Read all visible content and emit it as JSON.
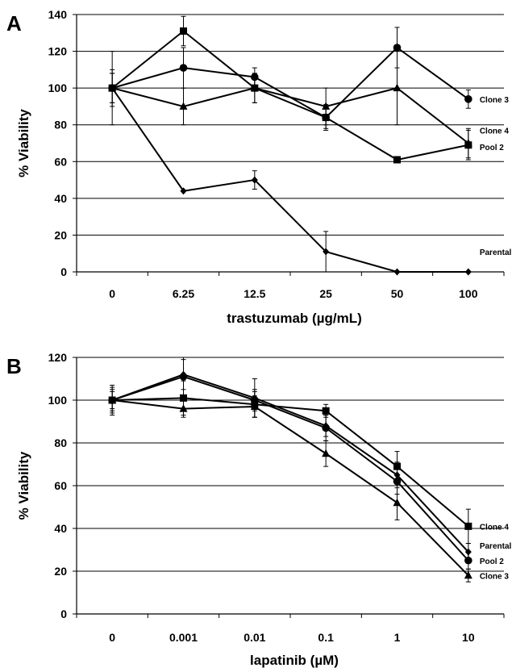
{
  "chart_data": [
    {
      "type": "line",
      "panel": "A",
      "xlabel": "trastuzumab (µg/mL)",
      "ylabel": "% Viability",
      "categories": [
        "0",
        "6.25",
        "12.5",
        "25",
        "50",
        "100"
      ],
      "ylim": [
        0,
        140
      ],
      "yticks": [
        0,
        20,
        40,
        60,
        80,
        100,
        120,
        140
      ],
      "grid": true,
      "series": [
        {
          "name": "Clone 3",
          "marker": "circle",
          "values": [
            100,
            111,
            106,
            84,
            122,
            94
          ],
          "errors": [
            10,
            11,
            5,
            6,
            11,
            5
          ]
        },
        {
          "name": "Clone 4",
          "marker": "triangle",
          "values": [
            100,
            90,
            100,
            90,
            100,
            70
          ],
          "errors": [
            20,
            10,
            8,
            10,
            20,
            8
          ]
        },
        {
          "name": "Pool 2",
          "marker": "square",
          "values": [
            100,
            131,
            100,
            84,
            61,
            69
          ],
          "errors": [
            8,
            8,
            8,
            7,
            0,
            8
          ]
        },
        {
          "name": "Parental",
          "marker": "diamond",
          "values": [
            100,
            44,
            50,
            11,
            0,
            0
          ],
          "errors": [
            8,
            0,
            5,
            11,
            0,
            0
          ]
        }
      ]
    },
    {
      "type": "line",
      "panel": "B",
      "xlabel": "lapatinib (µM)",
      "ylabel": "% Viability",
      "categories": [
        "0",
        "0.001",
        "0.01",
        "0.1",
        "1",
        "10"
      ],
      "ylim": [
        0,
        120
      ],
      "yticks": [
        0,
        20,
        40,
        60,
        80,
        100,
        120
      ],
      "grid": true,
      "series": [
        {
          "name": "Clone 4",
          "marker": "square",
          "values": [
            100,
            101,
            98,
            95,
            69,
            41
          ],
          "errors": [
            5,
            8,
            6,
            3,
            7,
            8
          ]
        },
        {
          "name": "Parental",
          "marker": "diamond",
          "values": [
            100,
            112,
            101,
            88,
            65,
            29
          ],
          "errors": [
            7,
            7,
            9,
            5,
            6,
            4
          ]
        },
        {
          "name": "Pool 2",
          "marker": "circle",
          "values": [
            100,
            111,
            100,
            87,
            62,
            25
          ],
          "errors": [
            6,
            9,
            5,
            6,
            6,
            4
          ]
        },
        {
          "name": "Clone 3",
          "marker": "triangle",
          "values": [
            100,
            96,
            97,
            75,
            52,
            18
          ],
          "errors": [
            4,
            4,
            5,
            6,
            8,
            3
          ]
        }
      ]
    }
  ]
}
